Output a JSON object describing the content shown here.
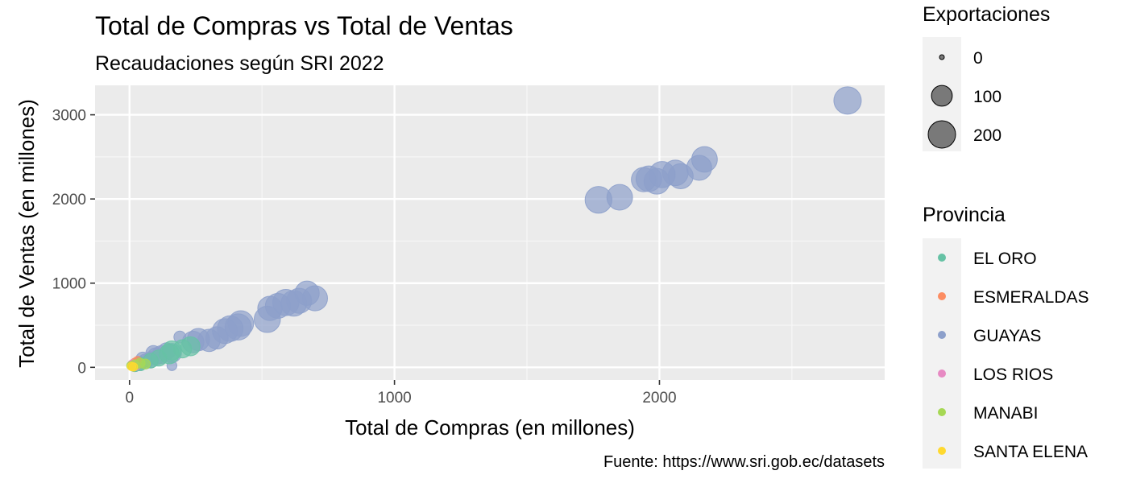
{
  "chart_data": {
    "type": "scatter",
    "title": "Total de Compras vs Total de Ventas",
    "subtitle": "Recaudaciones según SRI 2022",
    "xlabel": "Total de Compras (en millones)",
    "ylabel": "Total de Ventas (en millones)",
    "caption": "Fuente: https://www.sri.gob.ec/datasets",
    "xlim": [
      -130,
      2850
    ],
    "ylim": [
      -150,
      3350
    ],
    "x_ticks": [
      0,
      1000,
      2000
    ],
    "x_tick_labels": [
      "0",
      "1000",
      "2000"
    ],
    "y_ticks": [
      0,
      1000,
      2000,
      3000
    ],
    "y_tick_labels": [
      "0",
      "1000",
      "2000",
      "3000"
    ],
    "grid": true,
    "panel_background": "#ebebeb",
    "size_legend": {
      "title": "Exportaciones",
      "entries": [
        {
          "label": "0",
          "value": 0
        },
        {
          "label": "100",
          "value": 100
        },
        {
          "label": "200",
          "value": 200
        }
      ]
    },
    "color_legend": {
      "title": "Provincia",
      "entries": [
        {
          "label": "EL ORO",
          "color": "#66c2a5"
        },
        {
          "label": "ESMERALDAS",
          "color": "#fc8d62"
        },
        {
          "label": "GUAYAS",
          "color": "#8da0cb"
        },
        {
          "label": "LOS RIOS",
          "color": "#e78ac3"
        },
        {
          "label": "MANABI",
          "color": "#a6d854"
        },
        {
          "label": "SANTA ELENA",
          "color": "#ffd92f"
        }
      ]
    },
    "series": [
      {
        "name": "GUAYAS",
        "color": "#8da0cb",
        "points": [
          {
            "x": 2710,
            "y": 3170,
            "size": 200
          },
          {
            "x": 2170,
            "y": 2470,
            "size": 170
          },
          {
            "x": 2150,
            "y": 2370,
            "size": 160
          },
          {
            "x": 2060,
            "y": 2310,
            "size": 170
          },
          {
            "x": 2080,
            "y": 2270,
            "size": 160
          },
          {
            "x": 2010,
            "y": 2290,
            "size": 180
          },
          {
            "x": 1990,
            "y": 2210,
            "size": 170
          },
          {
            "x": 1960,
            "y": 2240,
            "size": 170
          },
          {
            "x": 1940,
            "y": 2230,
            "size": 150
          },
          {
            "x": 1850,
            "y": 2020,
            "size": 170
          },
          {
            "x": 1770,
            "y": 1990,
            "size": 190
          },
          {
            "x": 670,
            "y": 880,
            "size": 150
          },
          {
            "x": 700,
            "y": 820,
            "size": 160
          },
          {
            "x": 640,
            "y": 790,
            "size": 160
          },
          {
            "x": 620,
            "y": 760,
            "size": 170
          },
          {
            "x": 590,
            "y": 770,
            "size": 180
          },
          {
            "x": 560,
            "y": 730,
            "size": 160
          },
          {
            "x": 530,
            "y": 700,
            "size": 150
          },
          {
            "x": 520,
            "y": 570,
            "size": 180
          },
          {
            "x": 420,
            "y": 520,
            "size": 170
          },
          {
            "x": 410,
            "y": 480,
            "size": 180
          },
          {
            "x": 380,
            "y": 460,
            "size": 170
          },
          {
            "x": 360,
            "y": 430,
            "size": 160
          },
          {
            "x": 330,
            "y": 350,
            "size": 120
          },
          {
            "x": 300,
            "y": 320,
            "size": 120
          },
          {
            "x": 260,
            "y": 330,
            "size": 120
          },
          {
            "x": 240,
            "y": 300,
            "size": 110
          },
          {
            "x": 190,
            "y": 360,
            "size": 20
          },
          {
            "x": 160,
            "y": 170,
            "size": 80
          },
          {
            "x": 140,
            "y": 190,
            "size": 60
          },
          {
            "x": 120,
            "y": 150,
            "size": 70
          },
          {
            "x": 100,
            "y": 130,
            "size": 60
          },
          {
            "x": 90,
            "y": 170,
            "size": 40
          },
          {
            "x": 80,
            "y": 90,
            "size": 50
          },
          {
            "x": 60,
            "y": 70,
            "size": 40
          },
          {
            "x": 50,
            "y": 100,
            "size": 30
          },
          {
            "x": 40,
            "y": 50,
            "size": 30
          },
          {
            "x": 30,
            "y": 40,
            "size": 20
          },
          {
            "x": 20,
            "y": 20,
            "size": 20
          },
          {
            "x": 160,
            "y": 20,
            "size": 10
          }
        ]
      },
      {
        "name": "EL ORO",
        "color": "#66c2a5",
        "points": [
          {
            "x": 230,
            "y": 250,
            "size": 80
          },
          {
            "x": 200,
            "y": 220,
            "size": 70
          },
          {
            "x": 160,
            "y": 200,
            "size": 80
          },
          {
            "x": 150,
            "y": 160,
            "size": 90
          },
          {
            "x": 110,
            "y": 110,
            "size": 50
          },
          {
            "x": 80,
            "y": 80,
            "size": 40
          },
          {
            "x": 40,
            "y": 40,
            "size": 30
          },
          {
            "x": 20,
            "y": 20,
            "size": 20
          }
        ]
      },
      {
        "name": "ESMERALDAS",
        "color": "#fc8d62",
        "points": [
          {
            "x": 20,
            "y": 60,
            "size": 5
          },
          {
            "x": 15,
            "y": 30,
            "size": 5
          },
          {
            "x": 30,
            "y": 80,
            "size": 5
          }
        ]
      },
      {
        "name": "LOS RIOS",
        "color": "#e78ac3",
        "points": [
          {
            "x": 10,
            "y": 40,
            "size": 5
          },
          {
            "x": 25,
            "y": 15,
            "size": 5
          }
        ]
      },
      {
        "name": "MANABI",
        "color": "#a6d854",
        "points": [
          {
            "x": 40,
            "y": 50,
            "size": 10
          },
          {
            "x": 20,
            "y": 30,
            "size": 10
          },
          {
            "x": 10,
            "y": 10,
            "size": 5
          },
          {
            "x": 60,
            "y": 40,
            "size": 10
          },
          {
            "x": 5,
            "y": 20,
            "size": 5
          }
        ]
      },
      {
        "name": "SANTA ELENA",
        "color": "#ffd92f",
        "points": [
          {
            "x": 8,
            "y": 10,
            "size": 5
          },
          {
            "x": 15,
            "y": 5,
            "size": 5
          }
        ]
      }
    ]
  }
}
